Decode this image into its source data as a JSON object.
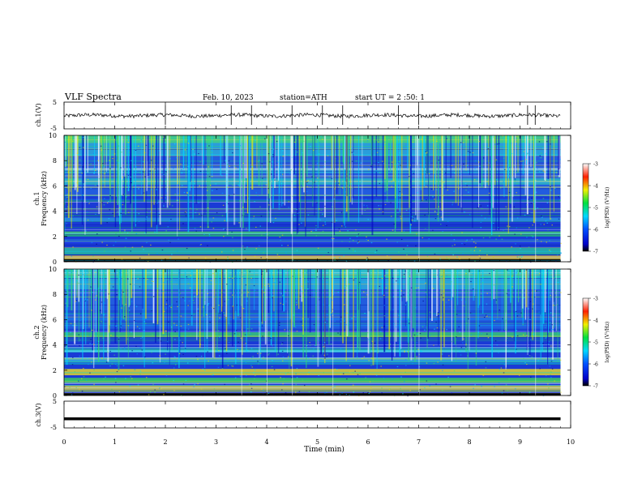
{
  "header": {
    "title": "VLF Spectra",
    "date": "Feb. 10, 2023",
    "station": "station=ATH",
    "start": "start UT =  2 :50: 1"
  },
  "chart_data": [
    {
      "type": "line",
      "ylabel": "ch.1(V)",
      "ylim": [
        -5,
        5
      ],
      "yticks": [
        "5",
        "-5"
      ],
      "x_range": [
        0,
        9.8
      ],
      "note": "waveform trace near 0 V"
    },
    {
      "type": "heatmap",
      "ylabel_channel": "ch.1",
      "ylabel": "Frequency (kHz)",
      "ylim": [
        0,
        10
      ],
      "yticks": [
        "0",
        "2",
        "4",
        "6",
        "8",
        "10"
      ],
      "x_range": [
        0,
        9.8
      ],
      "colorbar": {
        "label": "log(PSD) (V²/Hz)",
        "range": [
          -7,
          -3
        ],
        "ticks": [
          "-3",
          "-4",
          "-5",
          "-6",
          "-7"
        ]
      }
    },
    {
      "type": "heatmap",
      "ylabel_channel": "ch.2",
      "ylabel": "Frequency (kHz)",
      "ylim": [
        0,
        10
      ],
      "yticks": [
        "0",
        "2",
        "4",
        "6",
        "8",
        "10"
      ],
      "x_range": [
        0,
        9.8
      ],
      "colorbar": {
        "label": "log(PSD) (V²/Hz)",
        "range": [
          -7,
          -3
        ],
        "ticks": [
          "-3",
          "-4",
          "-5",
          "-6",
          "-7"
        ]
      }
    },
    {
      "type": "line",
      "ylabel": "ch.3(V)",
      "ylim": [
        -5,
        5
      ],
      "yticks": [
        "5",
        "-5"
      ],
      "x_range": [
        0,
        9.8
      ],
      "note": "flat trace near -1 V"
    }
  ],
  "xaxis": {
    "label": "Time (min)",
    "ticks": [
      "0",
      "1",
      "2",
      "3",
      "4",
      "5",
      "6",
      "7",
      "8",
      "9",
      "10"
    ],
    "range": [
      0,
      10
    ]
  },
  "colors": {
    "spectro_base": "#1a3ad6",
    "accent_cyan": "#1ad6e6",
    "accent_green": "#3ee05a",
    "accent_yellow": "#e6e028",
    "accent_red": "#e02828"
  }
}
